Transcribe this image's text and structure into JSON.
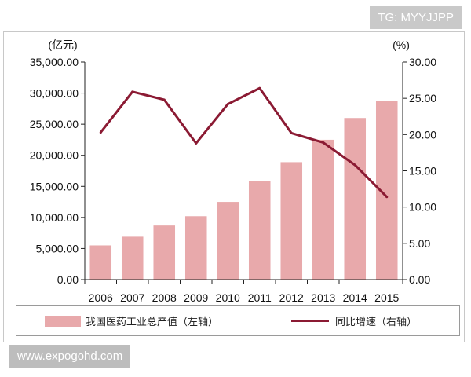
{
  "watermark_top": "TG: MYYJJPP",
  "watermark_bottom": "www.expogohd.com",
  "chart_data": {
    "type": "bar",
    "categories": [
      "2006",
      "2007",
      "2008",
      "2009",
      "2010",
      "2011",
      "2012",
      "2013",
      "2014",
      "2015"
    ],
    "series": [
      {
        "name": "我国医药工业总产值（左轴）",
        "type": "bar",
        "axis": "left",
        "values": [
          5500,
          6900,
          8700,
          10200,
          12500,
          15800,
          18900,
          22500,
          26000,
          28800
        ],
        "color": "#e8a9ab"
      },
      {
        "name": "同比增速（右轴）",
        "type": "line",
        "axis": "right",
        "values": [
          20.3,
          25.9,
          24.8,
          18.8,
          24.2,
          26.4,
          20.2,
          18.9,
          15.8,
          11.4
        ],
        "color": "#8b1a33"
      }
    ],
    "left_axis": {
      "label": "(亿元)",
      "min": 0,
      "max": 35000,
      "ticks": [
        "0.00",
        "5,000.00",
        "10,000.00",
        "15,000.00",
        "20,000.00",
        "25,000.00",
        "30,000.00",
        "35,000.00"
      ]
    },
    "right_axis": {
      "label": "(%)",
      "min": 0,
      "max": 30,
      "ticks": [
        "0.00",
        "5.00",
        "10.00",
        "15.00",
        "20.00",
        "25.00",
        "30.00"
      ]
    },
    "legend_position": "bottom",
    "grid": false
  }
}
